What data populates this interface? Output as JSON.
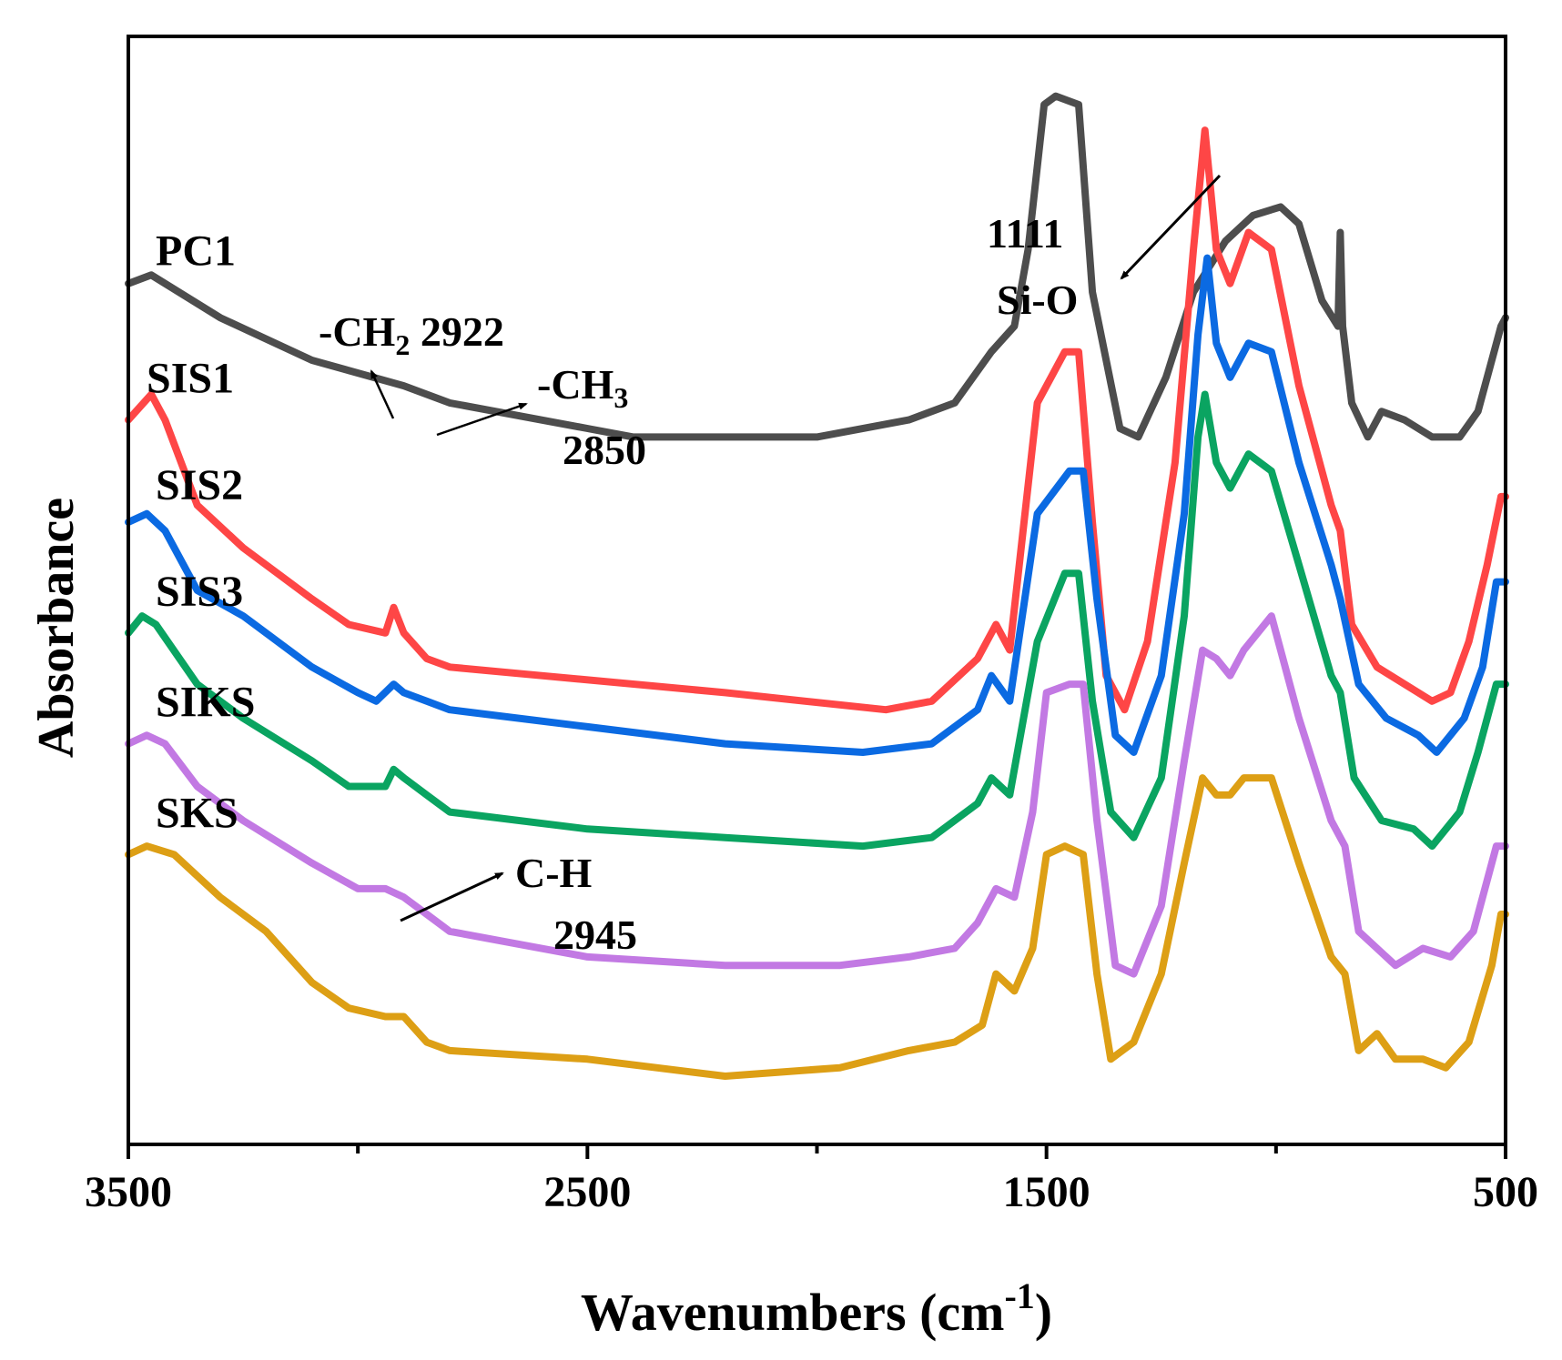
{
  "chart_data": {
    "type": "line",
    "title": "",
    "xlabel": "Wavenumbers (cm",
    "xlabel_exp": "-1",
    "xlabel_close": ")",
    "ylabel": "Absorbance",
    "xlim": [
      3500,
      500
    ],
    "x_reversed": true,
    "yticks_shown": false,
    "xticks": [
      {
        "value": 3500,
        "label": "3500"
      },
      {
        "value": 2500,
        "label": "2500"
      },
      {
        "value": 1500,
        "label": "1500"
      },
      {
        "value": 500,
        "label": "500"
      }
    ],
    "series": [
      {
        "name": "PC1",
        "color": "#4d4d4d",
        "points": [
          [
            3500,
            0.71
          ],
          [
            3450,
            0.72
          ],
          [
            3300,
            0.67
          ],
          [
            3100,
            0.62
          ],
          [
            2900,
            0.59
          ],
          [
            2800,
            0.57
          ],
          [
            2500,
            0.54
          ],
          [
            2400,
            0.53
          ],
          [
            2000,
            0.53
          ],
          [
            1800,
            0.55
          ],
          [
            1700,
            0.57
          ],
          [
            1620,
            0.63
          ],
          [
            1570,
            0.66
          ],
          [
            1540,
            0.75
          ],
          [
            1505,
            0.92
          ],
          [
            1480,
            0.93
          ],
          [
            1430,
            0.92
          ],
          [
            1400,
            0.7
          ],
          [
            1340,
            0.54
          ],
          [
            1300,
            0.53
          ],
          [
            1240,
            0.6
          ],
          [
            1180,
            0.7
          ],
          [
            1110,
            0.76
          ],
          [
            1050,
            0.79
          ],
          [
            990,
            0.8
          ],
          [
            950,
            0.78
          ],
          [
            900,
            0.69
          ],
          [
            865,
            0.66
          ],
          [
            860,
            0.77
          ],
          [
            855,
            0.66
          ],
          [
            835,
            0.57
          ],
          [
            800,
            0.53
          ],
          [
            770,
            0.56
          ],
          [
            720,
            0.55
          ],
          [
            660,
            0.53
          ],
          [
            600,
            0.53
          ],
          [
            560,
            0.56
          ],
          [
            530,
            0.62
          ],
          [
            510,
            0.66
          ],
          [
            500,
            0.67
          ]
        ]
      },
      {
        "name": "SIS1",
        "color": "#fe4646",
        "points": [
          [
            3500,
            0.55
          ],
          [
            3450,
            0.58
          ],
          [
            3420,
            0.55
          ],
          [
            3350,
            0.45
          ],
          [
            3250,
            0.4
          ],
          [
            3100,
            0.34
          ],
          [
            3020,
            0.31
          ],
          [
            2940,
            0.3
          ],
          [
            2922,
            0.33
          ],
          [
            2900,
            0.3
          ],
          [
            2850,
            0.27
          ],
          [
            2800,
            0.26
          ],
          [
            2600,
            0.25
          ],
          [
            2200,
            0.23
          ],
          [
            1850,
            0.21
          ],
          [
            1750,
            0.22
          ],
          [
            1650,
            0.27
          ],
          [
            1610,
            0.31
          ],
          [
            1580,
            0.28
          ],
          [
            1520,
            0.57
          ],
          [
            1460,
            0.63
          ],
          [
            1430,
            0.63
          ],
          [
            1400,
            0.43
          ],
          [
            1370,
            0.25
          ],
          [
            1330,
            0.21
          ],
          [
            1280,
            0.29
          ],
          [
            1220,
            0.5
          ],
          [
            1180,
            0.75
          ],
          [
            1155,
            0.89
          ],
          [
            1130,
            0.75
          ],
          [
            1100,
            0.71
          ],
          [
            1060,
            0.77
          ],
          [
            1010,
            0.75
          ],
          [
            950,
            0.59
          ],
          [
            880,
            0.45
          ],
          [
            860,
            0.42
          ],
          [
            835,
            0.31
          ],
          [
            780,
            0.26
          ],
          [
            660,
            0.22
          ],
          [
            620,
            0.23
          ],
          [
            580,
            0.29
          ],
          [
            540,
            0.38
          ],
          [
            510,
            0.46
          ],
          [
            500,
            0.46
          ]
        ]
      },
      {
        "name": "SIS2",
        "color": "#0b6ae2",
        "points": [
          [
            3500,
            0.43
          ],
          [
            3460,
            0.44
          ],
          [
            3420,
            0.42
          ],
          [
            3350,
            0.35
          ],
          [
            3250,
            0.32
          ],
          [
            3100,
            0.26
          ],
          [
            3000,
            0.23
          ],
          [
            2960,
            0.22
          ],
          [
            2922,
            0.24
          ],
          [
            2900,
            0.23
          ],
          [
            2850,
            0.22
          ],
          [
            2800,
            0.21
          ],
          [
            2500,
            0.19
          ],
          [
            2200,
            0.17
          ],
          [
            1900,
            0.16
          ],
          [
            1750,
            0.17
          ],
          [
            1650,
            0.21
          ],
          [
            1620,
            0.25
          ],
          [
            1580,
            0.22
          ],
          [
            1520,
            0.44
          ],
          [
            1450,
            0.49
          ],
          [
            1420,
            0.49
          ],
          [
            1390,
            0.34
          ],
          [
            1350,
            0.18
          ],
          [
            1310,
            0.16
          ],
          [
            1250,
            0.25
          ],
          [
            1200,
            0.44
          ],
          [
            1170,
            0.65
          ],
          [
            1150,
            0.74
          ],
          [
            1130,
            0.64
          ],
          [
            1100,
            0.6
          ],
          [
            1060,
            0.64
          ],
          [
            1010,
            0.63
          ],
          [
            950,
            0.5
          ],
          [
            880,
            0.38
          ],
          [
            860,
            0.34
          ],
          [
            820,
            0.24
          ],
          [
            760,
            0.2
          ],
          [
            690,
            0.18
          ],
          [
            650,
            0.16
          ],
          [
            590,
            0.2
          ],
          [
            550,
            0.26
          ],
          [
            520,
            0.36
          ],
          [
            500,
            0.36
          ]
        ]
      },
      {
        "name": "SIS3",
        "color": "#0aa461",
        "points": [
          [
            3500,
            0.3
          ],
          [
            3470,
            0.32
          ],
          [
            3440,
            0.31
          ],
          [
            3350,
            0.24
          ],
          [
            3250,
            0.2
          ],
          [
            3100,
            0.15
          ],
          [
            3020,
            0.12
          ],
          [
            2940,
            0.12
          ],
          [
            2922,
            0.14
          ],
          [
            2900,
            0.13
          ],
          [
            2850,
            0.11
          ],
          [
            2800,
            0.09
          ],
          [
            2500,
            0.07
          ],
          [
            2200,
            0.06
          ],
          [
            1900,
            0.05
          ],
          [
            1750,
            0.06
          ],
          [
            1650,
            0.1
          ],
          [
            1620,
            0.13
          ],
          [
            1580,
            0.11
          ],
          [
            1520,
            0.29
          ],
          [
            1460,
            0.37
          ],
          [
            1430,
            0.37
          ],
          [
            1400,
            0.22
          ],
          [
            1360,
            0.09
          ],
          [
            1310,
            0.06
          ],
          [
            1250,
            0.13
          ],
          [
            1200,
            0.32
          ],
          [
            1170,
            0.53
          ],
          [
            1155,
            0.58
          ],
          [
            1130,
            0.5
          ],
          [
            1100,
            0.47
          ],
          [
            1060,
            0.51
          ],
          [
            1010,
            0.49
          ],
          [
            950,
            0.38
          ],
          [
            880,
            0.25
          ],
          [
            860,
            0.23
          ],
          [
            830,
            0.13
          ],
          [
            770,
            0.08
          ],
          [
            700,
            0.07
          ],
          [
            660,
            0.05
          ],
          [
            600,
            0.09
          ],
          [
            560,
            0.16
          ],
          [
            520,
            0.24
          ],
          [
            500,
            0.24
          ]
        ]
      },
      {
        "name": "SIKS",
        "color": "#c279e3",
        "points": [
          [
            3500,
            0.17
          ],
          [
            3460,
            0.18
          ],
          [
            3420,
            0.17
          ],
          [
            3350,
            0.12
          ],
          [
            3250,
            0.08
          ],
          [
            3100,
            0.03
          ],
          [
            3000,
            0.0
          ],
          [
            2940,
            0.0
          ],
          [
            2900,
            -0.01
          ],
          [
            2850,
            -0.03
          ],
          [
            2800,
            -0.05
          ],
          [
            2500,
            -0.08
          ],
          [
            2200,
            -0.09
          ],
          [
            1950,
            -0.09
          ],
          [
            1800,
            -0.08
          ],
          [
            1700,
            -0.07
          ],
          [
            1650,
            -0.04
          ],
          [
            1610,
            0.0
          ],
          [
            1570,
            -0.01
          ],
          [
            1530,
            0.09
          ],
          [
            1500,
            0.23
          ],
          [
            1450,
            0.24
          ],
          [
            1420,
            0.24
          ],
          [
            1390,
            0.08
          ],
          [
            1350,
            -0.09
          ],
          [
            1310,
            -0.1
          ],
          [
            1250,
            -0.02
          ],
          [
            1200,
            0.15
          ],
          [
            1160,
            0.28
          ],
          [
            1130,
            0.27
          ],
          [
            1100,
            0.25
          ],
          [
            1070,
            0.28
          ],
          [
            1010,
            0.32
          ],
          [
            950,
            0.2
          ],
          [
            880,
            0.08
          ],
          [
            850,
            0.05
          ],
          [
            820,
            -0.05
          ],
          [
            780,
            -0.07
          ],
          [
            740,
            -0.09
          ],
          [
            680,
            -0.07
          ],
          [
            620,
            -0.08
          ],
          [
            570,
            -0.05
          ],
          [
            520,
            0.05
          ],
          [
            500,
            0.05
          ]
        ]
      },
      {
        "name": "SKS",
        "color": "#dd9f15",
        "points": [
          [
            3500,
            0.04
          ],
          [
            3460,
            0.05
          ],
          [
            3400,
            0.04
          ],
          [
            3300,
            -0.01
          ],
          [
            3200,
            -0.05
          ],
          [
            3100,
            -0.11
          ],
          [
            3020,
            -0.14
          ],
          [
            2940,
            -0.15
          ],
          [
            2900,
            -0.15
          ],
          [
            2850,
            -0.18
          ],
          [
            2800,
            -0.19
          ],
          [
            2500,
            -0.2
          ],
          [
            2200,
            -0.22
          ],
          [
            1950,
            -0.21
          ],
          [
            1800,
            -0.19
          ],
          [
            1700,
            -0.18
          ],
          [
            1640,
            -0.16
          ],
          [
            1610,
            -0.1
          ],
          [
            1570,
            -0.12
          ],
          [
            1530,
            -0.07
          ],
          [
            1500,
            0.04
          ],
          [
            1460,
            0.05
          ],
          [
            1420,
            0.04
          ],
          [
            1390,
            -0.1
          ],
          [
            1360,
            -0.2
          ],
          [
            1310,
            -0.18
          ],
          [
            1250,
            -0.1
          ],
          [
            1200,
            0.03
          ],
          [
            1160,
            0.13
          ],
          [
            1130,
            0.11
          ],
          [
            1100,
            0.11
          ],
          [
            1070,
            0.13
          ],
          [
            1010,
            0.13
          ],
          [
            950,
            0.03
          ],
          [
            880,
            -0.08
          ],
          [
            850,
            -0.1
          ],
          [
            820,
            -0.19
          ],
          [
            780,
            -0.17
          ],
          [
            740,
            -0.2
          ],
          [
            680,
            -0.2
          ],
          [
            630,
            -0.21
          ],
          [
            580,
            -0.18
          ],
          [
            530,
            -0.09
          ],
          [
            510,
            -0.03
          ],
          [
            500,
            -0.03
          ]
        ]
      }
    ],
    "annotations": [
      {
        "text": "1111"
      },
      {
        "text": "Si-O"
      },
      {
        "text": "-CH",
        "sub": "2",
        "rest": " 2922"
      },
      {
        "text": "-CH",
        "sub": "3"
      },
      {
        "text": "2850"
      },
      {
        "text": "C-H"
      },
      {
        "text": "2945"
      }
    ]
  }
}
